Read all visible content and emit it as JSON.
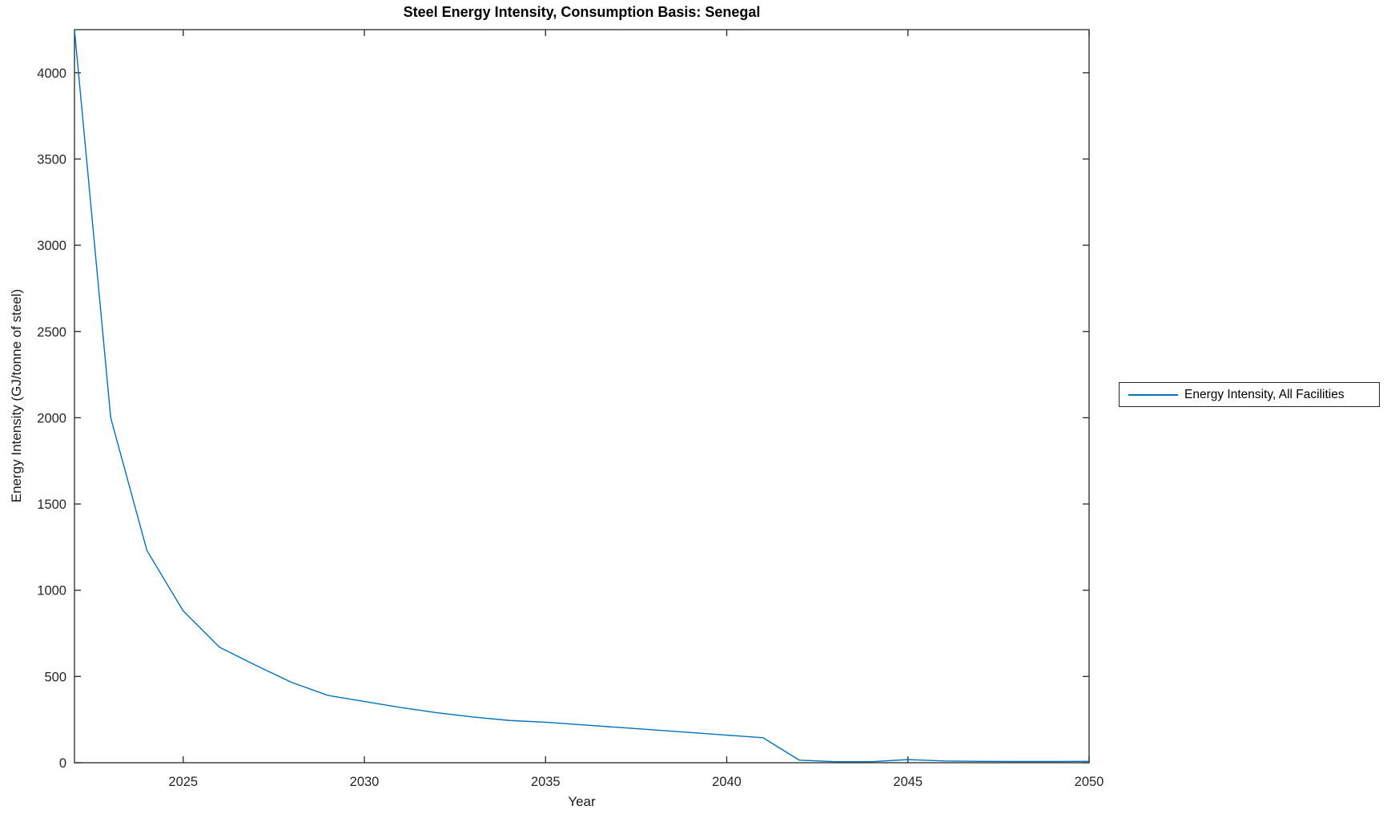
{
  "figure": {
    "title": "Steel Energy Intensity, Consumption Basis: Senegal",
    "xlabel": "Year",
    "ylabel": "Energy Intensity (GJ/tonne of steel)"
  },
  "legend": {
    "entries": [
      {
        "label": "Energy Intensity, All Facilities",
        "color": "#0072BD"
      }
    ]
  },
  "colors": {
    "series_blue": "#0072BD",
    "axis": "#262626",
    "background": "#ffffff",
    "tick_text": "#262626"
  },
  "chart_data": {
    "type": "line",
    "title": "Steel Energy Intensity, Consumption Basis: Senegal",
    "xlabel": "Year",
    "ylabel": "Energy Intensity (GJ/tonne of steel)",
    "xlim": [
      2022,
      2050
    ],
    "ylim": [
      0,
      4250
    ],
    "xticks": [
      2025,
      2030,
      2035,
      2040,
      2045,
      2050
    ],
    "yticks": [
      0,
      500,
      1000,
      1500,
      2000,
      2500,
      3000,
      3500,
      4000
    ],
    "grid": false,
    "box": true,
    "tick_direction": "in",
    "legend_position": "outside-right",
    "series": [
      {
        "name": "Energy Intensity, All Facilities",
        "color": "#0072BD",
        "x": [
          2022,
          2023,
          2024,
          2025,
          2026,
          2027,
          2028,
          2029,
          2030,
          2031,
          2032,
          2033,
          2034,
          2035,
          2036,
          2037,
          2038,
          2039,
          2040,
          2041,
          2042,
          2043,
          2044,
          2045,
          2046,
          2047,
          2048,
          2049,
          2050
        ],
        "y": [
          4250,
          2000,
          1230,
          880,
          670,
          565,
          465,
          390,
          355,
          320,
          290,
          265,
          245,
          235,
          220,
          205,
          190,
          175,
          160,
          145,
          15,
          6,
          6,
          18,
          10,
          8,
          7,
          7,
          8
        ]
      }
    ]
  }
}
